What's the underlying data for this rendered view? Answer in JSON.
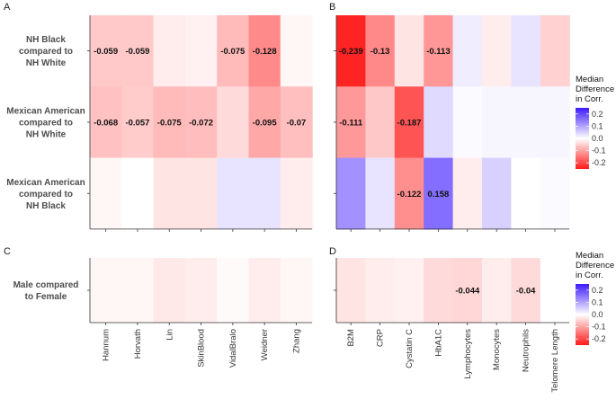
{
  "chart_data": [
    {
      "panel": "A",
      "type": "heatmap",
      "rows": [
        "NH Black compared to NH White",
        "Mexican American compared to NH White",
        "Mexican American compared to NH Black"
      ],
      "row_label_lines": [
        [
          "NH Black",
          "compared to",
          "NH White"
        ],
        [
          "Mexican American",
          "compared to",
          "NH White"
        ],
        [
          "Mexican American",
          "compared to",
          "NH Black"
        ]
      ],
      "columns": [
        "Hannum",
        "Horvath",
        "Lin",
        "SkinBlood",
        "VidalBralo",
        "Weidner",
        "Zhang"
      ],
      "values": [
        [
          -0.059,
          -0.059,
          -0.02,
          -0.015,
          -0.075,
          -0.128,
          -0.01
        ],
        [
          -0.068,
          -0.057,
          -0.075,
          -0.072,
          -0.04,
          -0.095,
          -0.07
        ],
        [
          -0.01,
          0.0,
          -0.03,
          -0.03,
          0.03,
          0.03,
          -0.02
        ]
      ],
      "labels": [
        [
          "-0.059",
          "-0.059",
          "",
          "",
          "-0.075",
          "-0.128",
          ""
        ],
        [
          "-0.068",
          "-0.057",
          "-0.075",
          "-0.072",
          "",
          "-0.095",
          "-0.07"
        ],
        [
          "",
          "",
          "",
          "",
          "",
          "",
          ""
        ]
      ]
    },
    {
      "panel": "B",
      "type": "heatmap",
      "rows": [
        "NH Black compared to NH White",
        "Mexican American compared to NH White",
        "Mexican American compared to NH Black"
      ],
      "columns": [
        "B2M",
        "CRP",
        "Cystatin C",
        "HbA1C",
        "Lymphocytes",
        "Monocytes",
        "Neutrophils",
        "Telomere Length"
      ],
      "values": [
        [
          -0.239,
          -0.13,
          -0.03,
          -0.113,
          0.02,
          -0.02,
          0.03,
          -0.05
        ],
        [
          -0.111,
          -0.06,
          -0.187,
          0.04,
          0.005,
          0.01,
          0.01,
          0.01
        ],
        [
          0.12,
          0.03,
          -0.122,
          0.158,
          -0.02,
          0.05,
          0.0,
          0.005
        ]
      ],
      "labels": [
        [
          "-0.239",
          "-0.13",
          "",
          "-0.113",
          "",
          "",
          "",
          ""
        ],
        [
          "-0.111",
          "",
          "-0.187",
          "",
          "",
          "",
          "",
          ""
        ],
        [
          "",
          "",
          "-0.122",
          "0.158",
          "",
          "",
          "",
          ""
        ]
      ]
    },
    {
      "panel": "C",
      "type": "heatmap",
      "rows": [
        "Male compared to Female"
      ],
      "row_label_lines": [
        [
          "Male compared",
          "to Female"
        ]
      ],
      "columns": [
        "Hannum",
        "Horvath",
        "Lin",
        "SkinBlood",
        "VidalBralo",
        "Weidner",
        "Zhang"
      ],
      "values": [
        [
          -0.01,
          -0.01,
          -0.025,
          -0.02,
          -0.005,
          -0.02,
          -0.01
        ]
      ],
      "labels": [
        [
          "",
          "",
          "",
          "",
          "",
          "",
          ""
        ]
      ]
    },
    {
      "panel": "D",
      "type": "heatmap",
      "rows": [
        "Male compared to Female"
      ],
      "columns": [
        "B2M",
        "CRP",
        "Cystatin C",
        "HbA1C",
        "Lymphocytes",
        "Monocytes",
        "Neutrophils",
        "Telomere Length"
      ],
      "values": [
        [
          -0.03,
          -0.02,
          -0.015,
          -0.04,
          -0.044,
          -0.02,
          -0.04,
          null
        ]
      ],
      "labels": [
        [
          "",
          "",
          "",
          "",
          "-0.044",
          "",
          "-0.04",
          ""
        ]
      ]
    }
  ],
  "legend": {
    "title_lines": [
      "Median",
      "Difference",
      "in Corr."
    ],
    "ticks": [
      "0.2",
      "0.1",
      "0.0",
      "-0.1",
      "-0.2"
    ],
    "tick_values": [
      0.2,
      0.1,
      0.0,
      -0.1,
      -0.2
    ],
    "range": [
      -0.25,
      0.25
    ],
    "colors": {
      "low": "#ff1a1a",
      "mid": "#ffffff",
      "high": "#3d1aff"
    }
  }
}
